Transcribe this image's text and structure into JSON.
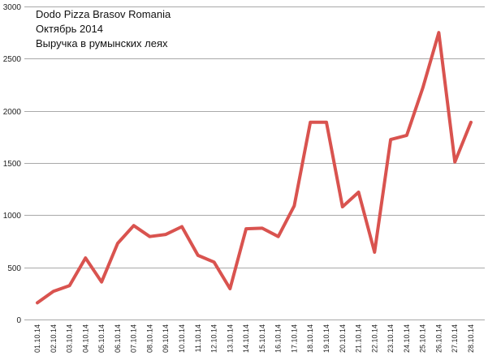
{
  "chart_data": {
    "type": "line",
    "title_lines": [
      "Dodo Pizza Brasov Romania",
      "Октябрь 2014",
      "Выручка в румынских леях"
    ],
    "categories": [
      "01.10.14",
      "02.10.14",
      "03.10.14",
      "04.10.14",
      "05.10.14",
      "06.10.14",
      "07.10.14",
      "08.10.14",
      "09.10.14",
      "10.10.14",
      "11.10.14",
      "12.10.14",
      "13.10.14",
      "14.10.14",
      "15.10.14",
      "16.10.14",
      "17.10.14",
      "18.10.14",
      "19.10.14",
      "20.10.14",
      "21.10.14",
      "22.10.14",
      "23.10.14",
      "24.10.14",
      "25.10.14",
      "26.10.14",
      "27.10.14",
      "28.10.14"
    ],
    "series": [
      {
        "values": [
          160,
          270,
          325,
          590,
          360,
          730,
          900,
          795,
          815,
          890,
          615,
          550,
          295,
          870,
          875,
          795,
          1090,
          1890,
          1890,
          1080,
          1220,
          645,
          1725,
          1765,
          2220,
          2750,
          1510,
          1890
        ],
        "color": "#d9534f"
      }
    ],
    "yticks": [
      "0",
      "500",
      "1000",
      "1500",
      "2000",
      "2500",
      "3000"
    ],
    "ylim": [
      0,
      3000
    ],
    "xlabel": "",
    "ylabel": "",
    "grid": true,
    "legend": "none"
  }
}
